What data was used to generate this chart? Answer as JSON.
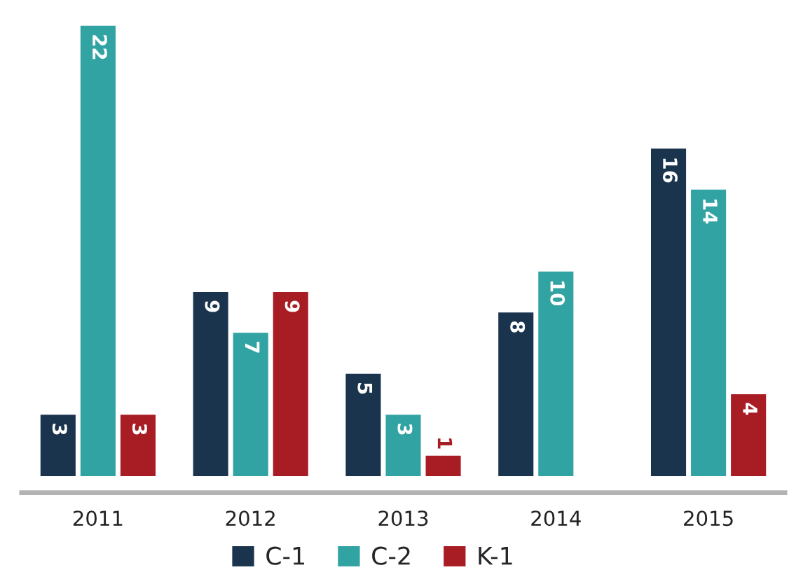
{
  "chart_data": {
    "type": "bar",
    "categories": [
      "2011",
      "2012",
      "2013",
      "2014",
      "2015"
    ],
    "series": [
      {
        "name": "C-1",
        "color": "#1a344d",
        "values": [
          3,
          9,
          5,
          8,
          16
        ]
      },
      {
        "name": "C-2",
        "color": "#31a3a3",
        "values": [
          22,
          7,
          3,
          10,
          14
        ]
      },
      {
        "name": "K-1",
        "color": "#a81c24",
        "values": [
          3,
          9,
          1,
          null,
          4
        ]
      }
    ],
    "data_labels": true,
    "legend": "bottom",
    "grid": false
  }
}
